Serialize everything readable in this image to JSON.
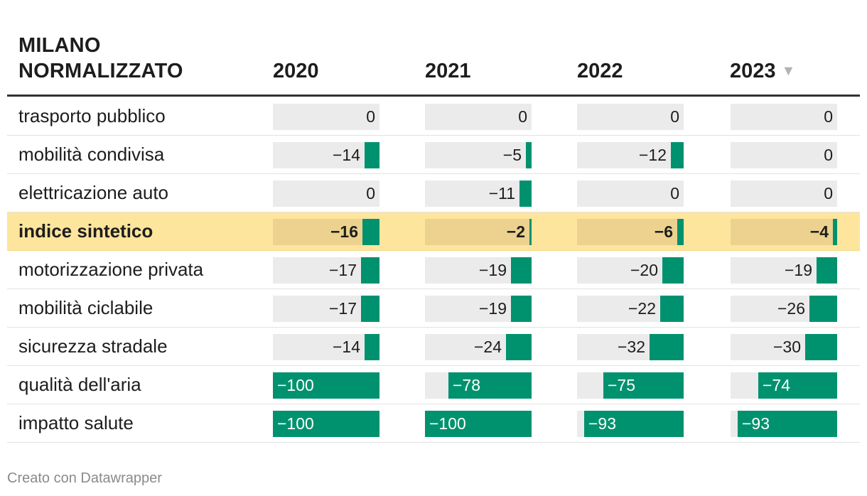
{
  "table": {
    "title": "MILANO NORMALIZZATO",
    "columns": [
      "2020",
      "2021",
      "2022",
      "2023"
    ],
    "sorted_column_icon": "sort-descending-icon",
    "sort_indicator": "▼",
    "highlight_row": "indice sintetico"
  },
  "colors": {
    "bar": "#00926e",
    "cell_bg": "#ebebeb",
    "highlight": "#fde59d"
  },
  "chart_data": {
    "type": "table",
    "title": "MILANO NORMALIZZATO",
    "columns": [
      "2020",
      "2021",
      "2022",
      "2023"
    ],
    "value_range": [
      -100,
      0
    ],
    "rows": [
      {
        "label": "trasporto pubblico",
        "values": [
          0,
          0,
          0,
          0
        ],
        "display": [
          "0",
          "0",
          "0",
          "0"
        ]
      },
      {
        "label": "mobilità condivisa",
        "values": [
          -14,
          -5,
          -12,
          0
        ],
        "display": [
          "−14",
          "−5",
          "−12",
          "0"
        ]
      },
      {
        "label": "elettricazione auto",
        "values": [
          0,
          -11,
          0,
          0
        ],
        "display": [
          "0",
          "−11",
          "0",
          "0"
        ]
      },
      {
        "label": "indice sintetico",
        "values": [
          -16,
          -2,
          -6,
          -4
        ],
        "display": [
          "−16",
          "−2",
          "−6",
          "−4"
        ]
      },
      {
        "label": "motorizzazione privata",
        "values": [
          -17,
          -19,
          -20,
          -19
        ],
        "display": [
          "−17",
          "−19",
          "−20",
          "−19"
        ]
      },
      {
        "label": "mobilità ciclabile",
        "values": [
          -17,
          -19,
          -22,
          -26
        ],
        "display": [
          "−17",
          "−19",
          "−22",
          "−26"
        ]
      },
      {
        "label": "sicurezza stradale",
        "values": [
          -14,
          -24,
          -32,
          -30
        ],
        "display": [
          "−14",
          "−24",
          "−32",
          "−30"
        ]
      },
      {
        "label": "qualità dell'aria",
        "values": [
          -100,
          -78,
          -75,
          -74
        ],
        "display": [
          "−100",
          "−78",
          "−75",
          "−74"
        ]
      },
      {
        "label": "impatto salute",
        "values": [
          -100,
          -100,
          -93,
          -93
        ],
        "display": [
          "−100",
          "−100",
          "−93",
          "−93"
        ]
      }
    ]
  },
  "footer": {
    "credit": "Creato con Datawrapper"
  }
}
